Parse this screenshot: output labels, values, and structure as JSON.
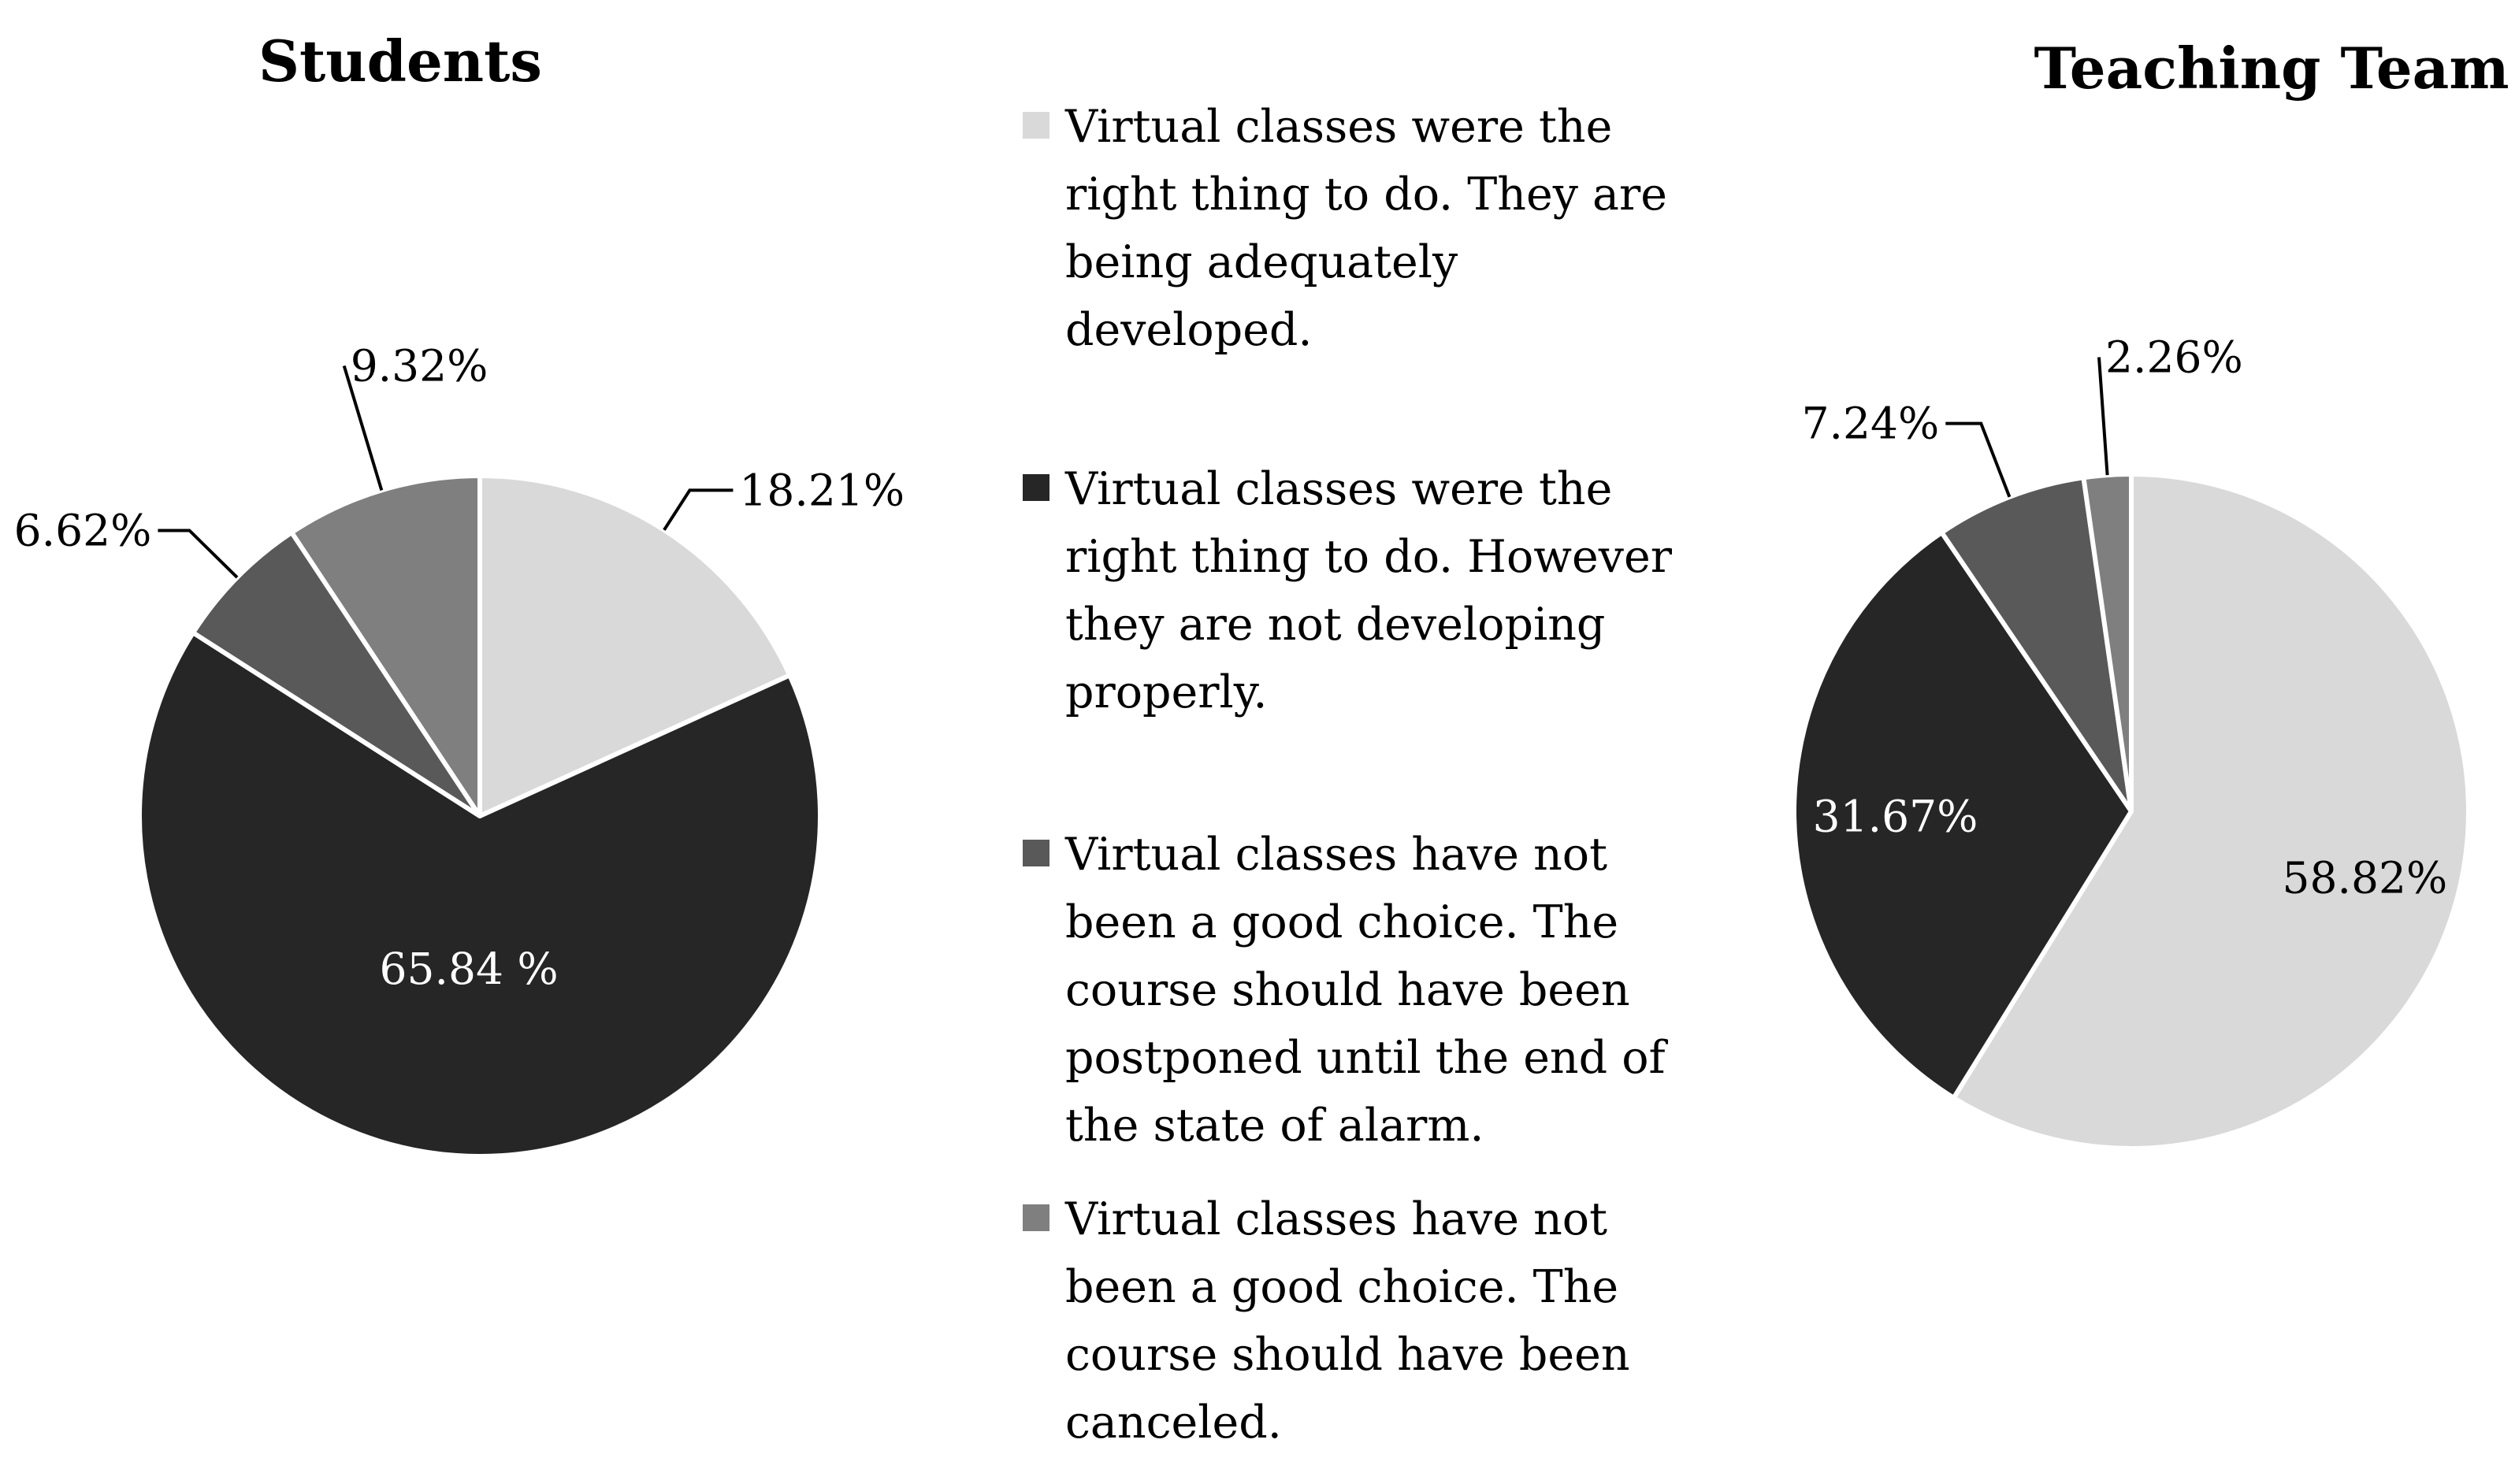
{
  "chart_data": [
    {
      "type": "pie",
      "title": "Students",
      "slices": [
        {
          "series_index": 0,
          "value": 18.21,
          "label": "18.21%"
        },
        {
          "series_index": 1,
          "value": 65.84,
          "label": "65.84 %"
        },
        {
          "series_index": 2,
          "value": 6.62,
          "label": "6.62%"
        },
        {
          "series_index": 3,
          "value": 9.32,
          "label": "9.32%"
        }
      ]
    },
    {
      "type": "pie",
      "title": "Teaching Team",
      "slices": [
        {
          "series_index": 0,
          "value": 58.82,
          "label": "58.82%"
        },
        {
          "series_index": 1,
          "value": 31.67,
          "label": "31.67%"
        },
        {
          "series_index": 2,
          "value": 7.24,
          "label": "7.24%"
        },
        {
          "series_index": 3,
          "value": 2.26,
          "label": "2.26%"
        }
      ]
    }
  ],
  "legend": {
    "placement": "center",
    "items": [
      {
        "label": "Virtual classes were the right thing to do. They are being adequately developed.",
        "color": "#d9d9d9"
      },
      {
        "label": "Virtual classes were the right thing to do. However they are not developing properly.",
        "color": "#262626"
      },
      {
        "label": "Virtual classes have not been a good choice. The course should have been postponed until the end of the state of alarm.",
        "color": "#595959"
      },
      {
        "label": "Virtual classes have not been a good choice. The course should have been canceled.",
        "color": "#7f7f7f"
      }
    ]
  }
}
